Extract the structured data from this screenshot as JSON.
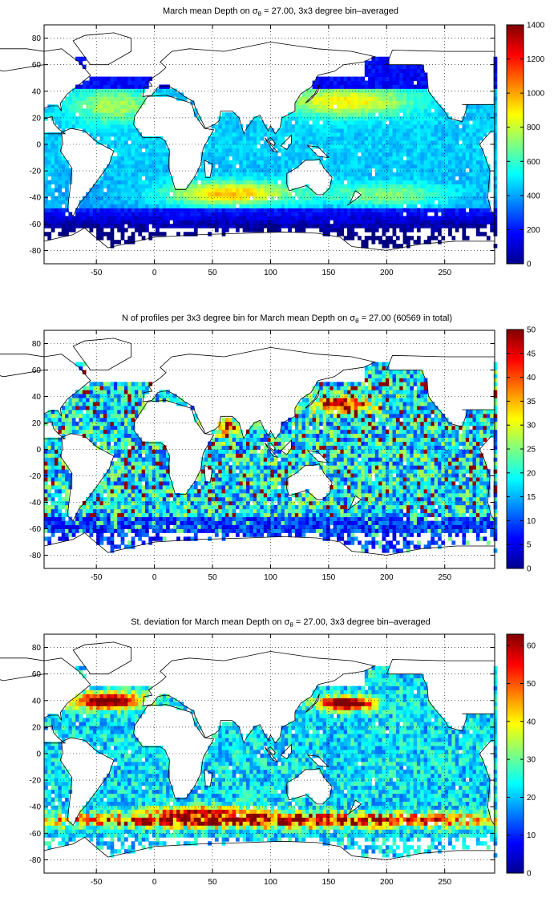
{
  "figure": {
    "background": "#ffffff",
    "colormap": "jet"
  },
  "chart_data": [
    {
      "type": "heatmap",
      "title_pre": "March mean Depth on ",
      "title_sym": "σ",
      "title_sub": "θ",
      "title_post": " = 27.00, 3x3 degree bin–averaged",
      "xlim": [
        -95,
        293
      ],
      "ylim": [
        -90,
        90
      ],
      "x_ticks": [
        "-50",
        "0",
        "50",
        "100",
        "150",
        "200",
        "250"
      ],
      "x_tick_values": [
        -50,
        0,
        50,
        100,
        150,
        200,
        250
      ],
      "y_ticks": [
        "80",
        "60",
        "40",
        "20",
        "0",
        "-20",
        "-40",
        "-60",
        "-80"
      ],
      "y_tick_values": [
        80,
        60,
        40,
        20,
        0,
        -20,
        -40,
        -60,
        -80
      ],
      "grid": true,
      "colorbar": {
        "min": 0,
        "max": 1400,
        "ticks": [
          "1400",
          "1200",
          "1000",
          "800",
          "600",
          "400",
          "200",
          "0"
        ],
        "tick_values": [
          1400,
          1200,
          1000,
          800,
          600,
          400,
          200,
          0
        ]
      },
      "field": "mean_depth",
      "approx_values": {
        "north_atlantic_subtropical": 750,
        "north_pacific_subtropical": 900,
        "south_indian_subtropical": 1000,
        "tropics": 450,
        "southern_ocean_band": 200,
        "antarctic_margin": 100
      }
    },
    {
      "type": "heatmap",
      "title_pre": "N of profiles per 3x3 degree bin for March mean Depth on ",
      "title_sym": "σ",
      "title_sub": "θ",
      "title_post": " = 27.00 (60569 in total)",
      "xlim": [
        -95,
        293
      ],
      "ylim": [
        -90,
        90
      ],
      "x_ticks": [
        "-50",
        "0",
        "50",
        "100",
        "150",
        "200",
        "250"
      ],
      "x_tick_values": [
        -50,
        0,
        50,
        100,
        150,
        200,
        250
      ],
      "y_ticks": [
        "80",
        "60",
        "40",
        "20",
        "0",
        "-20",
        "-40",
        "-60",
        "-80"
      ],
      "y_tick_values": [
        80,
        60,
        40,
        20,
        0,
        -20,
        -40,
        -60,
        -80
      ],
      "grid": true,
      "colorbar": {
        "min": 0,
        "max": 50,
        "ticks": [
          "50",
          "45",
          "40",
          "35",
          "30",
          "25",
          "20",
          "15",
          "10",
          "5",
          "0"
        ],
        "tick_values": [
          50,
          45,
          40,
          35,
          30,
          25,
          20,
          15,
          10,
          5,
          0
        ]
      },
      "field": "profile_count",
      "total_profiles": 60569,
      "approx_values": {
        "kuroshio_extension": 45,
        "arabian_sea": 40,
        "typical_open_ocean": 15,
        "southern_ocean": 10
      }
    },
    {
      "type": "heatmap",
      "title_pre": "St. deviation for March mean Depth on ",
      "title_sym": "σ",
      "title_sub": "θ",
      "title_post": " = 27.00, 3x3 degree bin–averaged",
      "xlim": [
        -95,
        293
      ],
      "ylim": [
        -90,
        90
      ],
      "x_ticks": [
        "-50",
        "0",
        "50",
        "100",
        "150",
        "200",
        "250"
      ],
      "x_tick_values": [
        -50,
        0,
        50,
        100,
        150,
        200,
        250
      ],
      "y_ticks": [
        "80",
        "60",
        "40",
        "20",
        "0",
        "-20",
        "-40",
        "-60",
        "-80"
      ],
      "y_tick_values": [
        80,
        60,
        40,
        20,
        0,
        -20,
        -40,
        -60,
        -80
      ],
      "grid": true,
      "colorbar": {
        "min": 0,
        "max": 63,
        "ticks": [
          "60",
          "50",
          "40",
          "30",
          "20",
          "10",
          "0"
        ],
        "tick_values": [
          60,
          50,
          40,
          30,
          20,
          10,
          0
        ]
      },
      "field": "depth_std",
      "approx_values": {
        "gulf_stream": 60,
        "kuroshio_extension": 60,
        "antarctic_circumpolar_current": 60,
        "tropics": 20,
        "subtropical_gyres": 15
      }
    }
  ]
}
